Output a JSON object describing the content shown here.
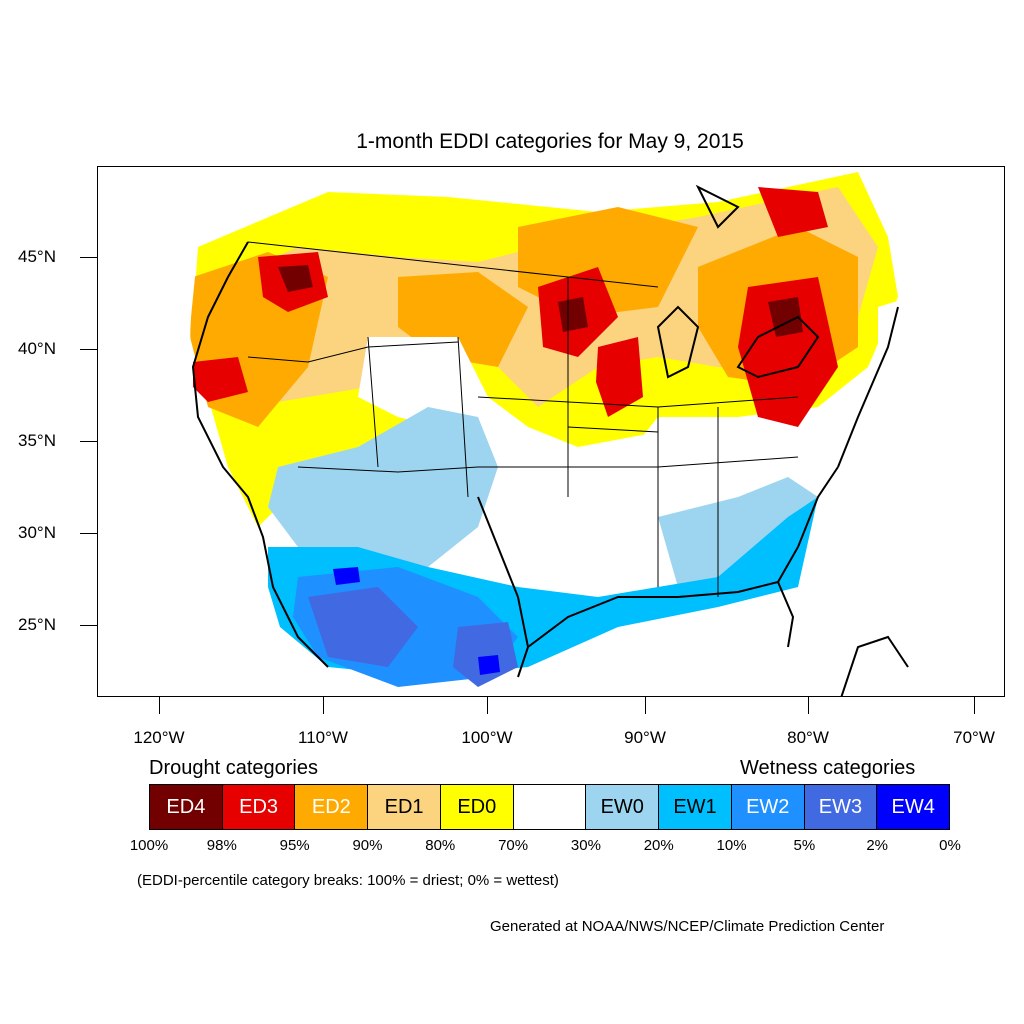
{
  "title": "1-month EDDI categories for May 9, 2015",
  "axes": {
    "lat_labels": [
      "45°N",
      "40°N",
      "35°N",
      "30°N",
      "25°N"
    ],
    "lon_labels": [
      "120°W",
      "110°W",
      "100°W",
      "90°W",
      "80°W",
      "70°W"
    ]
  },
  "legend": {
    "drought_heading": "Drought categories",
    "wetness_heading": "Wetness categories",
    "categories": [
      {
        "label": "ED4",
        "color": "#730000",
        "text_color": "#ffffff"
      },
      {
        "label": "ED3",
        "color": "#e60000",
        "text_color": "#ffffff"
      },
      {
        "label": "ED2",
        "color": "#ffaa00",
        "text_color": "#ffffff"
      },
      {
        "label": "ED1",
        "color": "#fcd37f",
        "text_color": "#000000"
      },
      {
        "label": "ED0",
        "color": "#ffff00",
        "text_color": "#000000"
      },
      {
        "label": "",
        "color": "#ffffff",
        "text_color": "#000000"
      },
      {
        "label": "EW0",
        "color": "#9dd5f0",
        "text_color": "#000000"
      },
      {
        "label": "EW1",
        "color": "#00bfff",
        "text_color": "#000000"
      },
      {
        "label": "EW2",
        "color": "#1e90ff",
        "text_color": "#ffffff"
      },
      {
        "label": "EW3",
        "color": "#4169e1",
        "text_color": "#ffffff"
      },
      {
        "label": "EW4",
        "color": "#0000ff",
        "text_color": "#ffffff"
      }
    ],
    "percentiles": [
      "100%",
      "98%",
      "95%",
      "90%",
      "80%",
      "70%",
      "30%",
      "20%",
      "10%",
      "5%",
      "2%",
      "0%"
    ]
  },
  "note": "(EDDI-percentile category breaks: 100% = driest; 0% = wettest)",
  "credit": "Generated at NOAA/NWS/NCEP/Climate Prediction Center"
}
